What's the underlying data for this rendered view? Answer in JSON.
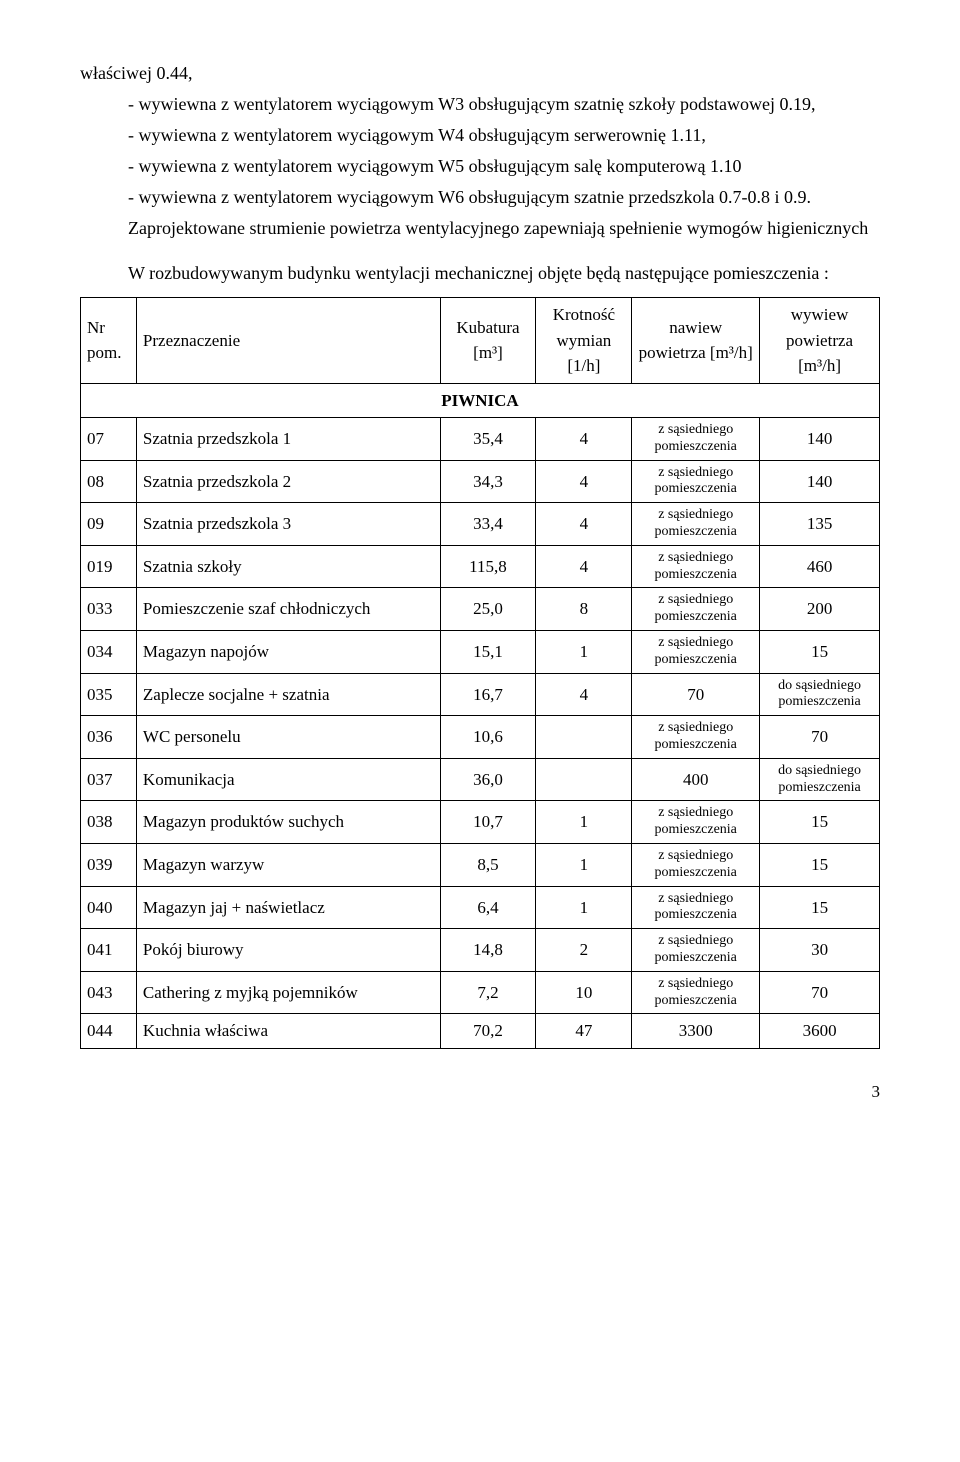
{
  "paragraphs": {
    "p1": "właściwej 0.44,",
    "p2": "- wywiewna z wentylatorem wyciągowym W3 obsługującym szatnię szkoły podstawowej 0.19,",
    "p3": "- wywiewna z wentylatorem wyciągowym W4 obsługującym serwerownię 1.11,",
    "p4": "- wywiewna z wentylatorem wyciągowym W5 obsługującym salę komputerową 1.10",
    "p5": "- wywiewna z wentylatorem wyciągowym W6 obsługującym szatnie przedszkola 0.7-0.8 i 0.9.",
    "p6": "Zaprojektowane strumienie powietrza wentylacyjnego zapewniają spełnienie wymogów higienicznych",
    "p7": "W rozbudowywanym budynku wentylacji mechanicznej objęte będą następujące pomieszczenia :"
  },
  "headers": {
    "nr": "Nr pom.",
    "prz": "Przeznaczenie",
    "kub": "Kubatura [m³]",
    "krot": "Krotność wymian [1/h]",
    "naw": "nawiew powietrza [m³/h]",
    "wyw": "wywiew powietrza [m³/h]",
    "section": "PIWNICA"
  },
  "adjacent": {
    "z": "z sąsiedniego pomieszczenia",
    "do": "do sąsiedniego pomieszczenia"
  },
  "rows": [
    {
      "nr": "07",
      "prz": "Szatnia  przedszkola 1",
      "kub": "35,4",
      "krot": "4",
      "naw": "z",
      "wyw": "140"
    },
    {
      "nr": "08",
      "prz": "Szatnia  przedszkola 2",
      "kub": "34,3",
      "krot": "4",
      "naw": "z",
      "wyw": "140"
    },
    {
      "nr": "09",
      "prz": "Szatnia  przedszkola 3",
      "kub": "33,4",
      "krot": "4",
      "naw": "z",
      "wyw": "135"
    },
    {
      "nr": "019",
      "prz": "Szatnia  szkoły",
      "kub": "115,8",
      "krot": "4",
      "naw": "z",
      "wyw": "460"
    },
    {
      "nr": "033",
      "prz": "Pomieszczenie szaf chłodniczych",
      "kub": "25,0",
      "krot": "8",
      "naw": "z",
      "wyw": "200"
    },
    {
      "nr": "034",
      "prz": "Magazyn  napojów",
      "kub": "15,1",
      "krot": "1",
      "naw": "z",
      "wyw": "15"
    },
    {
      "nr": "035",
      "prz": "Zaplecze socjalne + szatnia",
      "kub": "16,7",
      "krot": "4",
      "naw": "70",
      "wyw": "do"
    },
    {
      "nr": "036",
      "prz": "WC personelu",
      "kub": "10,6",
      "krot": "",
      "naw": "z",
      "wyw": "70"
    },
    {
      "nr": "037",
      "prz": "Komunikacja",
      "kub": "36,0",
      "krot": "",
      "naw": "400",
      "wyw": "do"
    },
    {
      "nr": "038",
      "prz": "Magazyn  produktów suchych",
      "kub": "10,7",
      "krot": "1",
      "naw": "z",
      "wyw": "15"
    },
    {
      "nr": "039",
      "prz": "Magazyn  warzyw",
      "kub": "8,5",
      "krot": "1",
      "naw": "z",
      "wyw": "15"
    },
    {
      "nr": "040",
      "prz": "Magazyn  jaj + naświetlacz",
      "kub": "6,4",
      "krot": "1",
      "naw": "z",
      "wyw": "15"
    },
    {
      "nr": "041",
      "prz": "Pokój  biurowy",
      "kub": "14,8",
      "krot": "2",
      "naw": "z",
      "wyw": "30"
    },
    {
      "nr": "043",
      "prz": "Cathering  z myjką pojemników",
      "kub": "7,2",
      "krot": "10",
      "naw": "z",
      "wyw": "70"
    },
    {
      "nr": "044",
      "prz": "Kuchnia  właściwa",
      "kub": "70,2",
      "krot": "47",
      "naw": "3300",
      "wyw": "3600"
    }
  ],
  "pageNumber": "3"
}
